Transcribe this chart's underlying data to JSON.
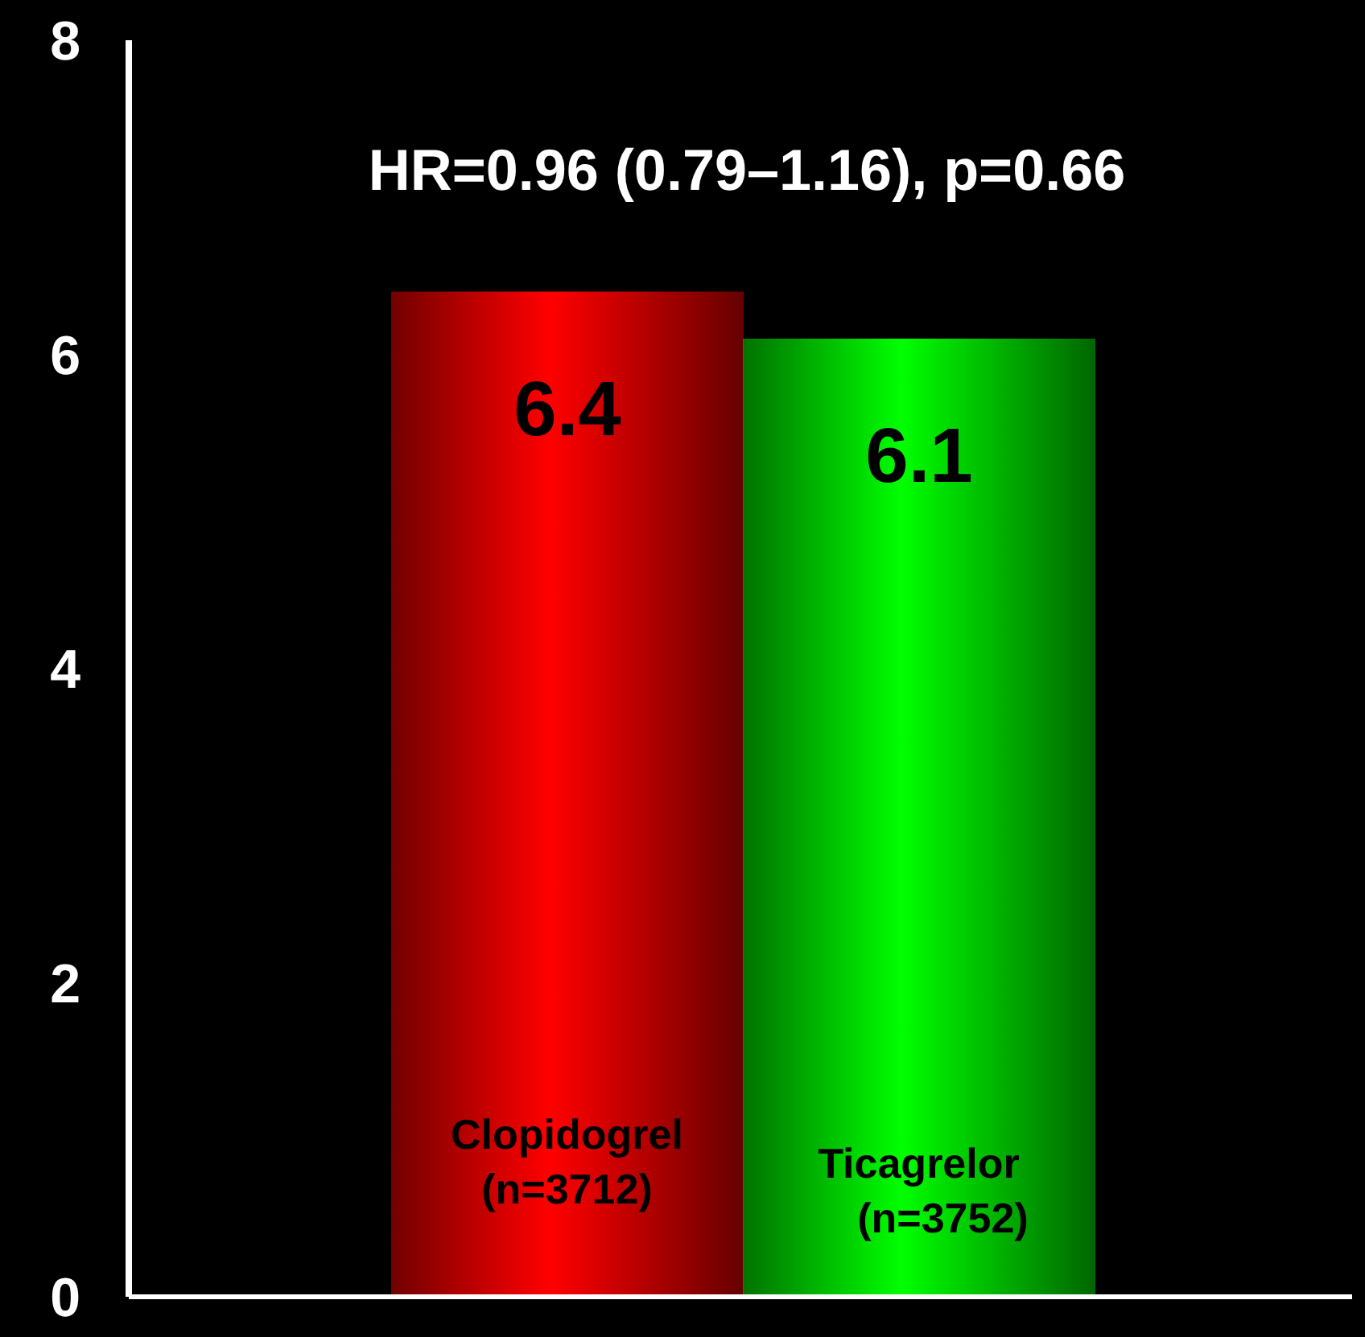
{
  "chart_data": {
    "type": "bar",
    "categories": [
      "Clopidogrel (n=3712)",
      "Ticagrelor (n=3752)"
    ],
    "values": [
      6.4,
      6.1
    ],
    "colors": [
      "#ff0000",
      "#00ff00"
    ],
    "ylim": [
      0,
      8
    ],
    "yticks": [
      0,
      2,
      4,
      6,
      8
    ],
    "data_labels": true,
    "annotations": [
      "HR=0.96 (0.79–1.16), p=0.66"
    ]
  }
}
